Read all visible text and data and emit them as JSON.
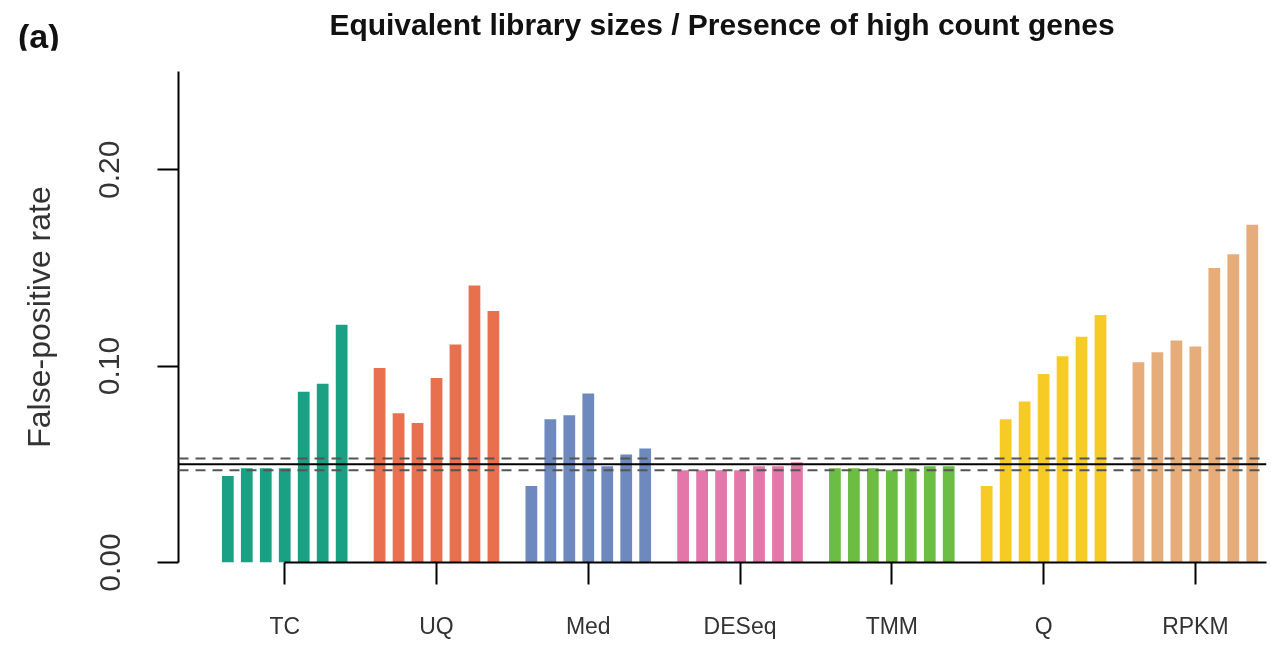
{
  "chart_data": {
    "type": "bar",
    "title": "Equivalent library sizes / Presence of high count genes",
    "ylabel": "False-positive rate",
    "annotations": [
      "(a)"
    ],
    "categories": [
      "TC",
      "UQ",
      "Med",
      "DESeq",
      "TMM",
      "Q",
      "RPKM"
    ],
    "series": [
      {
        "colors": [
          "#1aa083",
          "#e8704e",
          "#6d89bd",
          "#e377a9",
          "#6cbd44",
          "#f7cb25",
          "#e6ac7a"
        ],
        "values": [
          0.044,
          0.099,
          0.039,
          0.047,
          0.048,
          0.039,
          0.102
        ]
      },
      {
        "colors": [
          "#1aa083",
          "#e8704e",
          "#6d89bd",
          "#e377a9",
          "#6cbd44",
          "#f7cb25",
          "#e6ac7a"
        ],
        "values": [
          0.048,
          0.076,
          0.073,
          0.047,
          0.048,
          0.073,
          0.107
        ]
      },
      {
        "colors": [
          "#1aa083",
          "#e8704e",
          "#6d89bd",
          "#e377a9",
          "#6cbd44",
          "#f7cb25",
          "#e6ac7a"
        ],
        "values": [
          0.048,
          0.071,
          0.075,
          0.047,
          0.048,
          0.082,
          0.113
        ]
      },
      {
        "colors": [
          "#1aa083",
          "#e8704e",
          "#6d89bd",
          "#e377a9",
          "#6cbd44",
          "#f7cb25",
          "#e6ac7a"
        ],
        "values": [
          0.048,
          0.094,
          0.086,
          0.047,
          0.047,
          0.096,
          0.11
        ]
      },
      {
        "colors": [
          "#1aa083",
          "#e8704e",
          "#6d89bd",
          "#e377a9",
          "#6cbd44",
          "#f7cb25",
          "#e6ac7a"
        ],
        "values": [
          0.087,
          0.111,
          0.049,
          0.049,
          0.048,
          0.105,
          0.15
        ]
      },
      {
        "colors": [
          "#1aa083",
          "#e8704e",
          "#6d89bd",
          "#e377a9",
          "#6cbd44",
          "#f7cb25",
          "#e6ac7a"
        ],
        "values": [
          0.091,
          0.141,
          0.055,
          0.049,
          0.049,
          0.115,
          0.157
        ]
      },
      {
        "colors": [
          "#1aa083",
          "#e8704e",
          "#6d89bd",
          "#e377a9",
          "#6cbd44",
          "#f7cb25",
          "#e6ac7a"
        ],
        "values": [
          0.121,
          0.128,
          0.058,
          0.051,
          0.049,
          0.126,
          0.172
        ]
      }
    ],
    "ylim": [
      0,
      0.25
    ],
    "yticks": [
      {
        "value": 0,
        "label": "0.00"
      },
      {
        "value": 0.1,
        "label": "0.10"
      },
      {
        "value": 0.2,
        "label": "0.20"
      }
    ],
    "ref_lines": [
      {
        "axis": "y",
        "value": 0.05,
        "color": "#000000",
        "line_style": "solid"
      },
      {
        "axis": "y",
        "value": 0.053,
        "color": "#555555",
        "line_style": "dashed"
      },
      {
        "axis": "y",
        "value": 0.047,
        "color": "#555555",
        "line_style": "dashed"
      }
    ]
  }
}
